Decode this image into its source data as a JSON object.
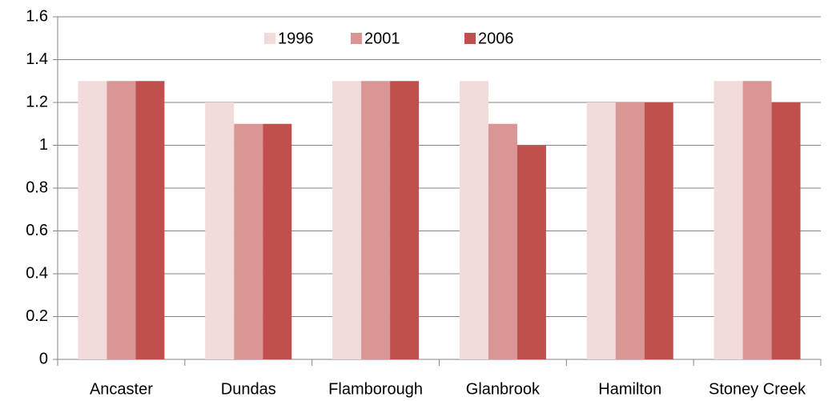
{
  "chart_data": {
    "type": "bar",
    "categories": [
      "Ancaster",
      "Dundas",
      "Flamborough",
      "Glanbrook",
      "Hamilton",
      "Stoney Creek"
    ],
    "series": [
      {
        "name": "1996",
        "color": "#f2dcdb",
        "values": [
          1.3,
          1.2,
          1.3,
          1.3,
          1.2,
          1.3
        ]
      },
      {
        "name": "2001",
        "color": "#d99694",
        "values": [
          1.3,
          1.1,
          1.3,
          1.1,
          1.2,
          1.3
        ]
      },
      {
        "name": "2006",
        "color": "#c0504d",
        "values": [
          1.3,
          1.1,
          1.3,
          1.0,
          1.2,
          1.2
        ]
      }
    ],
    "ylim": [
      0,
      1.6
    ],
    "yticks": [
      0,
      0.2,
      0.4,
      0.6,
      0.8,
      1,
      1.2,
      1.4,
      1.6
    ],
    "grid": true,
    "legend": "top"
  }
}
